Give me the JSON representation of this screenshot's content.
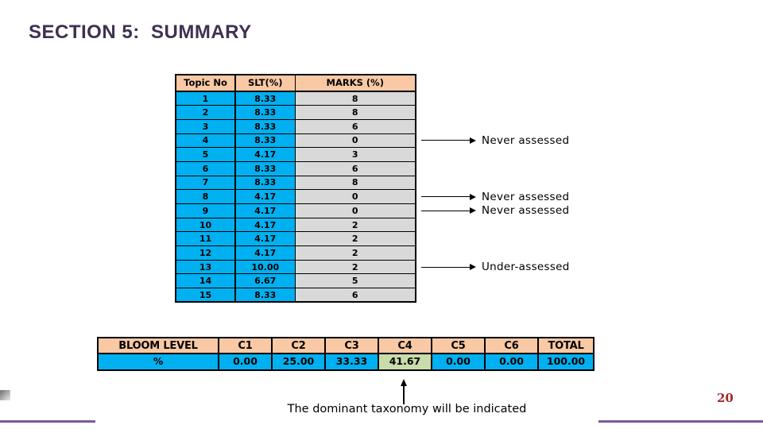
{
  "slide": {
    "title": "SECTION 5:  SUMMARY",
    "note": "The dominant taxonomy will be indicated",
    "page_number": "20"
  },
  "colors": {
    "title": "#3f3151",
    "header_fill": "#f8c9a4",
    "blue_fill": "#00b0f0",
    "gray_fill": "#d9d9d9",
    "green_fill": "#c9dcab",
    "page_number": "#a12b28",
    "accent_line": "#7b5b9a"
  },
  "topic_table": {
    "headers": [
      "Topic No",
      "SLT(%)",
      "MARKS (%)"
    ],
    "rows": [
      {
        "topic": "1",
        "slt": "8.33",
        "marks": "8"
      },
      {
        "topic": "2",
        "slt": "8.33",
        "marks": "8"
      },
      {
        "topic": "3",
        "slt": "8.33",
        "marks": "6"
      },
      {
        "topic": "4",
        "slt": "8.33",
        "marks": "0"
      },
      {
        "topic": "5",
        "slt": "4.17",
        "marks": "3"
      },
      {
        "topic": "6",
        "slt": "8.33",
        "marks": "6"
      },
      {
        "topic": "7",
        "slt": "8.33",
        "marks": "8"
      },
      {
        "topic": "8",
        "slt": "4.17",
        "marks": "0"
      },
      {
        "topic": "9",
        "slt": "4.17",
        "marks": "0"
      },
      {
        "topic": "10",
        "slt": "4.17",
        "marks": "2"
      },
      {
        "topic": "11",
        "slt": "4.17",
        "marks": "2"
      },
      {
        "topic": "12",
        "slt": "4.17",
        "marks": "2"
      },
      {
        "topic": "13",
        "slt": "10.00",
        "marks": "2"
      },
      {
        "topic": "14",
        "slt": "6.67",
        "marks": "5"
      },
      {
        "topic": "15",
        "slt": "8.33",
        "marks": "6"
      }
    ]
  },
  "annotations": [
    {
      "label": "Never assessed",
      "row": 4
    },
    {
      "label": "Never assessed",
      "row": 8
    },
    {
      "label": "Never assessed",
      "row": 9
    },
    {
      "label": "Under-assessed",
      "row": 13
    }
  ],
  "bloom_table": {
    "headers": [
      "BLOOM LEVEL",
      "C1",
      "C2",
      "C3",
      "C4",
      "C5",
      "C6",
      "TOTAL"
    ],
    "row_label": "%",
    "values": [
      "0.00",
      "25.00",
      "33.33",
      "41.67",
      "0.00",
      "0.00",
      "100.00"
    ],
    "highlight_index": 3
  }
}
